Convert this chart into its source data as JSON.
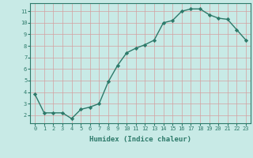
{
  "x": [
    0,
    1,
    2,
    3,
    4,
    5,
    6,
    7,
    8,
    9,
    10,
    11,
    12,
    13,
    14,
    15,
    16,
    17,
    18,
    19,
    20,
    21,
    22,
    23
  ],
  "y": [
    3.8,
    2.2,
    2.2,
    2.2,
    1.7,
    2.5,
    2.7,
    3.0,
    4.9,
    6.3,
    7.4,
    7.8,
    8.1,
    8.5,
    10.0,
    10.2,
    11.0,
    11.2,
    11.2,
    10.7,
    10.4,
    10.3,
    9.4,
    8.5
  ],
  "line_color": "#2d7a6a",
  "marker": "D",
  "markersize": 2.2,
  "linewidth": 1.0,
  "xlabel": "Humidex (Indice chaleur)",
  "xlim": [
    -0.5,
    23.5
  ],
  "ylim": [
    1.3,
    11.7
  ],
  "yticks": [
    2,
    3,
    4,
    5,
    6,
    7,
    8,
    9,
    10,
    11
  ],
  "xticks": [
    0,
    1,
    2,
    3,
    4,
    5,
    6,
    7,
    8,
    9,
    10,
    11,
    12,
    13,
    14,
    15,
    16,
    17,
    18,
    19,
    20,
    21,
    22,
    23
  ],
  "bg_color": "#c8eae6",
  "grid_color": "#d4a0a0",
  "tick_color": "#2d7a6a",
  "label_color": "#2d7a6a",
  "xlabel_fontsize": 6.5,
  "tick_fontsize": 5.0
}
